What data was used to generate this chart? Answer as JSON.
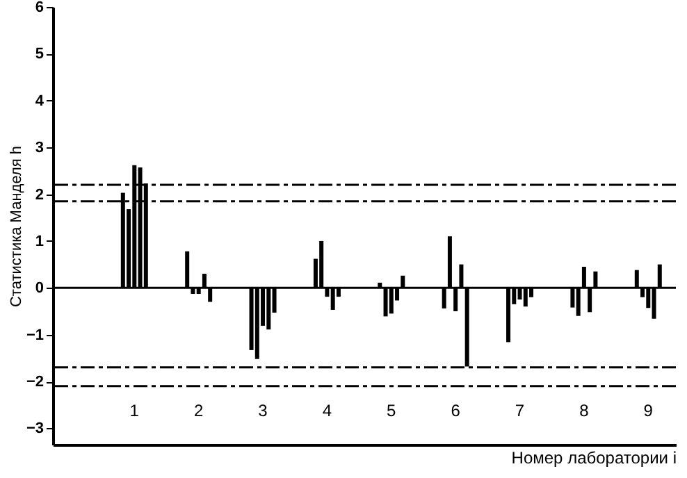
{
  "chart_data": {
    "type": "bar",
    "ylabel": "Статистика Манделя h",
    "xlabel": "Номер лаборатории i",
    "categories": [
      "1",
      "2",
      "3",
      "4",
      "5",
      "6",
      "7",
      "8",
      "9"
    ],
    "series": [
      {
        "color": "#000000",
        "values": [
          2.03,
          0.78,
          -1.33,
          0.62,
          0.11,
          -0.44,
          -1.16,
          -0.42,
          0.38
        ]
      },
      {
        "color": "#000000",
        "values": [
          1.68,
          -0.13,
          -1.52,
          1.0,
          -0.61,
          1.1,
          -0.35,
          -0.6,
          -0.2
        ]
      },
      {
        "color": "#000000",
        "values": [
          2.62,
          -0.13,
          -0.81,
          -0.19,
          -0.55,
          -0.5,
          -0.25,
          0.45,
          -0.43
        ]
      },
      {
        "color": "#000000",
        "values": [
          2.57,
          0.3,
          -0.89,
          -0.47,
          -0.27,
          0.5,
          -0.4,
          -0.52,
          -0.66
        ]
      },
      {
        "color": "#000000",
        "values": [
          2.23,
          -0.3,
          -0.53,
          -0.19,
          0.26,
          -1.68,
          -0.2,
          0.35,
          0.5
        ]
      }
    ],
    "ylim": [
      -3.35,
      6
    ],
    "yticks": [
      -3,
      -2,
      -1,
      0,
      1,
      2,
      3,
      4,
      5,
      6
    ],
    "ref_lines": [
      {
        "axis": "y",
        "value": 0,
        "line_style": "solid",
        "color": "#000000"
      },
      {
        "axis": "y",
        "value": 2.2,
        "line_style": "dashed",
        "color": "#000000"
      },
      {
        "axis": "y",
        "value": 1.85,
        "line_style": "dashed",
        "color": "#000000"
      },
      {
        "axis": "y",
        "value": -1.7,
        "line_style": "dashed",
        "color": "#000000"
      },
      {
        "axis": "y",
        "value": -2.1,
        "line_style": "dashed",
        "color": "#000000"
      }
    ],
    "grid": false
  }
}
